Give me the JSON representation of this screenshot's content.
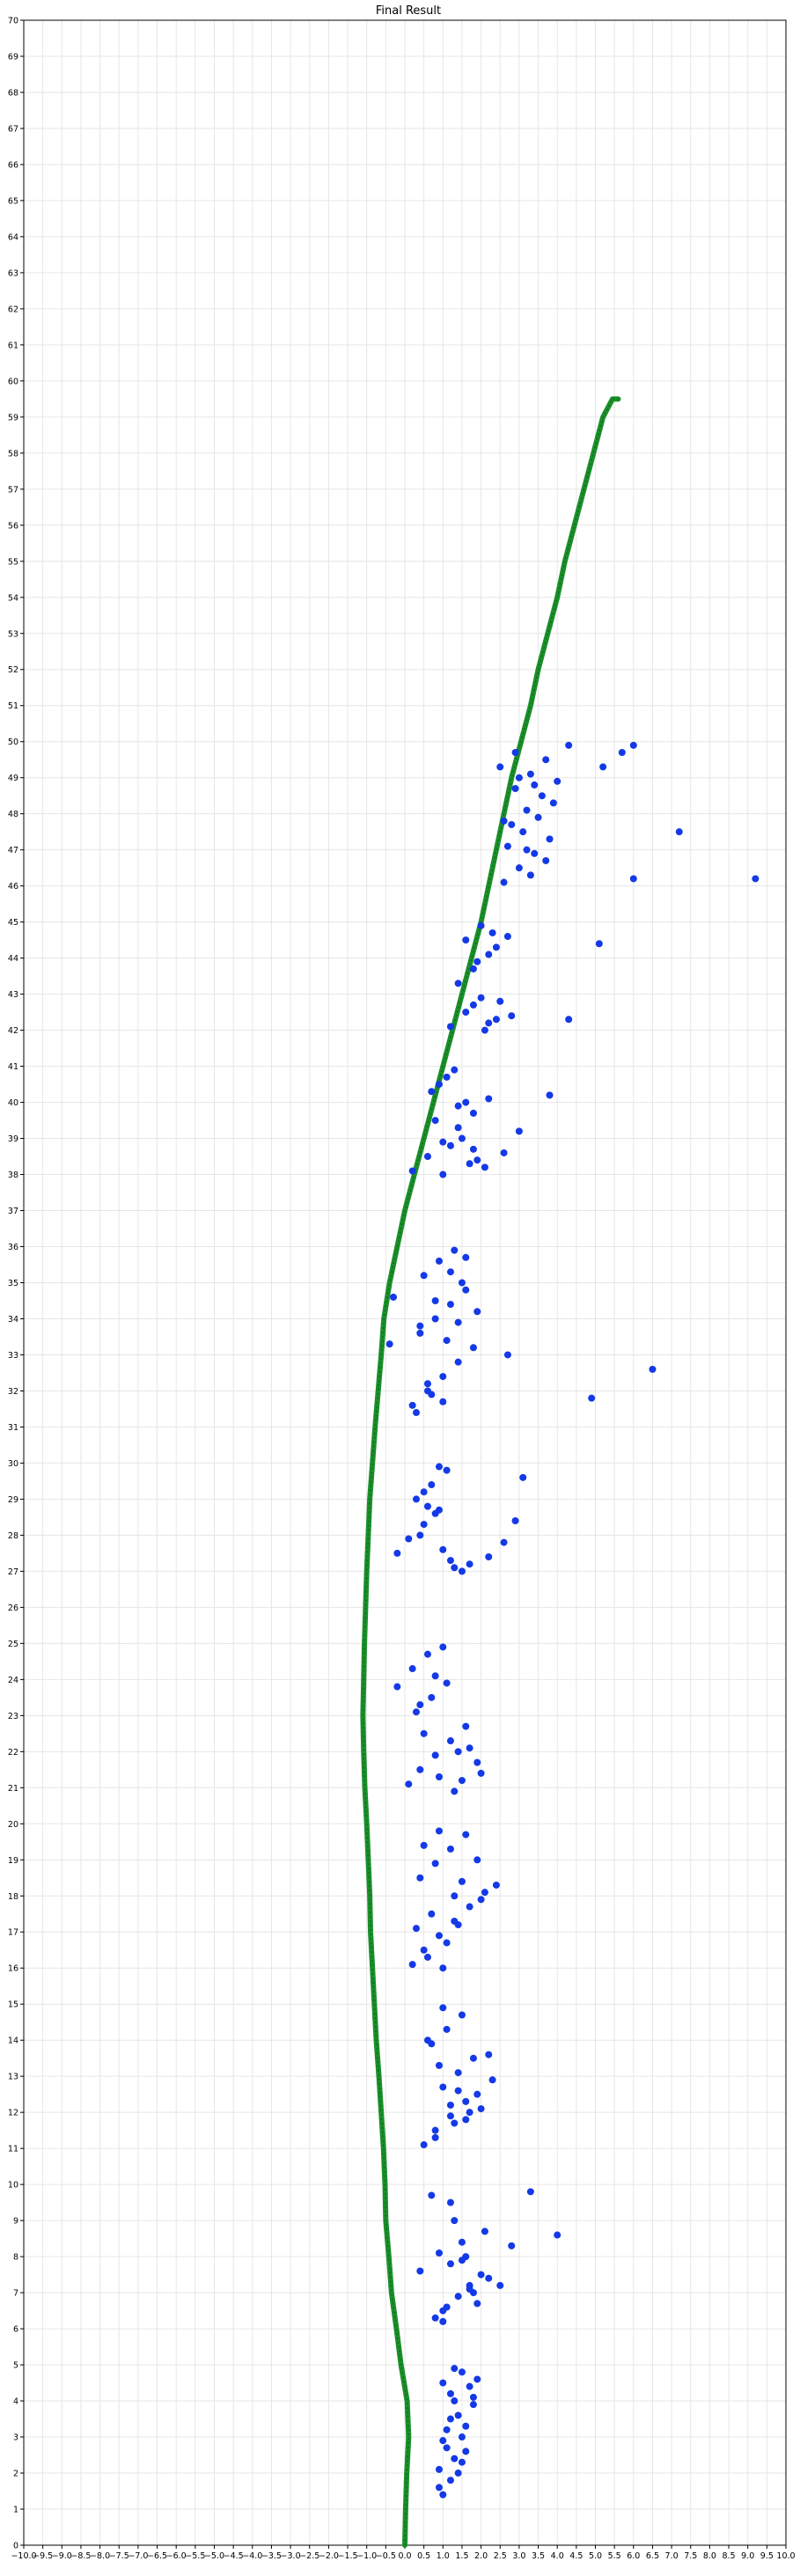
{
  "chart_data": {
    "type": "scatter",
    "title": "Final Result",
    "xlabel": "",
    "ylabel": "",
    "xlim": [
      -10.0,
      10.0
    ],
    "ylim": [
      0,
      70
    ],
    "x_tick_step": 0.5,
    "y_tick_step": 1,
    "grid": true,
    "legend": "none",
    "colors": {
      "path": "#1a8f2a",
      "points": "#1439e6",
      "grid": "#e6e6e6",
      "axes": "#000000"
    },
    "series": [
      {
        "type": "line",
        "color": "#1a8f2a",
        "x": [
          0.0,
          0.02,
          0.05,
          0.1,
          0.06,
          -0.1,
          -0.22,
          -0.35,
          -0.42,
          -0.5,
          -0.52,
          -0.56,
          -0.62,
          -0.68,
          -0.75,
          -0.8,
          -0.85,
          -0.9,
          -0.92,
          -0.96,
          -1.0,
          -1.05,
          -1.08,
          -1.1,
          -1.06,
          -1.0,
          -0.92,
          -0.85,
          -0.78,
          -0.7,
          -0.62,
          -0.55,
          -0.4,
          -0.2,
          0.0,
          0.25,
          0.5,
          0.75,
          1.0,
          1.25,
          1.5,
          1.75,
          2.0,
          2.2,
          2.4,
          2.6,
          2.8,
          3.05,
          3.3,
          3.5,
          3.75,
          4.0,
          4.2,
          4.45,
          4.7,
          4.95,
          5.2,
          5.45,
          5.6
        ],
        "y": [
          0.0,
          1.0,
          2.0,
          3.0,
          4.0,
          5.0,
          6.0,
          7.0,
          8.0,
          9.0,
          10.0,
          11.0,
          12.0,
          13.0,
          14.0,
          15.0,
          16.0,
          17.0,
          18.0,
          19.0,
          20.0,
          21.0,
          22.0,
          23.0,
          25.0,
          27.0,
          29.0,
          30.0,
          31.0,
          32.0,
          33.0,
          34.0,
          35.0,
          36.0,
          37.0,
          38.0,
          39.0,
          40.0,
          41.0,
          42.0,
          43.0,
          44.0,
          45.0,
          46.0,
          47.0,
          48.0,
          49.0,
          50.0,
          51.0,
          52.0,
          53.0,
          54.0,
          55.0,
          56.0,
          57.0,
          58.0,
          59.0,
          59.5,
          59.5
        ]
      },
      {
        "type": "scatter",
        "color": "#1439e6",
        "x": [
          1.0,
          1.2,
          0.9,
          1.3,
          1.1,
          1.5,
          1.6,
          1.4,
          1.8,
          1.2,
          1.0,
          1.5,
          1.7,
          1.3,
          1.9,
          1.1,
          1.6,
          0.9,
          1.4,
          1.2,
          1.8,
          1.0,
          1.5,
          1.3,
          0.8,
          1.1,
          1.4,
          1.7,
          2.0,
          1.2,
          0.9,
          1.5,
          1.8,
          2.2,
          1.0,
          1.6,
          2.5,
          1.3,
          2.8,
          3.3,
          4.0,
          0.4,
          1.9,
          1.2,
          0.7,
          1.5,
          2.1,
          1.0,
          1.7,
          0.5,
          0.8,
          1.2,
          1.6,
          2.0,
          1.0,
          1.4,
          1.8,
          0.7,
          1.1,
          1.5,
          1.9,
          2.3,
          0.9,
          1.3,
          1.7,
          0.6,
          1.0,
          1.4,
          2.2,
          0.8,
          1.2,
          1.6,
          0.2,
          0.5,
          0.9,
          1.3,
          1.7,
          2.1,
          2.4,
          0.4,
          0.8,
          1.2,
          1.6,
          2.0,
          0.3,
          0.7,
          1.1,
          1.5,
          1.9,
          0.5,
          0.9,
          1.3,
          0.6,
          1.0,
          1.4,
          0.1,
          0.4,
          0.8,
          1.2,
          1.6,
          2.0,
          0.3,
          0.7,
          1.1,
          1.5,
          1.9,
          0.2,
          0.6,
          1.0,
          1.4,
          -0.2,
          0.5,
          0.9,
          1.3,
          1.7,
          0.4,
          0.8,
          -0.2,
          0.1,
          0.5,
          0.9,
          1.3,
          1.7,
          2.2,
          2.6,
          2.9,
          3.1,
          0.3,
          0.7,
          1.1,
          1.5,
          0.4,
          0.8,
          1.2,
          0.5,
          0.9,
          0.6,
          1.0,
          -0.3,
          0.2,
          0.6,
          1.0,
          1.4,
          1.8,
          0.4,
          0.8,
          1.2,
          1.6,
          2.7,
          0.5,
          0.9,
          1.3,
          4.9,
          6.5,
          0.3,
          0.7,
          1.1,
          1.5,
          1.9,
          -0.4,
          0.4,
          0.8,
          1.2,
          1.6,
          0.6,
          1.0,
          1.4,
          0.2,
          0.6,
          1.0,
          1.4,
          1.8,
          2.2,
          0.9,
          1.3,
          1.7,
          2.1,
          0.7,
          1.1,
          1.5,
          1.9,
          0.8,
          1.2,
          1.6,
          2.6,
          3.0,
          3.8,
          1.0,
          1.4,
          1.8,
          1.2,
          1.6,
          2.0,
          2.4,
          1.4,
          1.8,
          2.2,
          1.6,
          2.0,
          2.4,
          1.8,
          2.2,
          2.8,
          4.3,
          1.9,
          2.3,
          2.7,
          2.1,
          2.5,
          5.1,
          2.6,
          3.0,
          3.4,
          3.8,
          2.8,
          3.2,
          3.6,
          4.0,
          2.5,
          2.9,
          3.3,
          3.7,
          2.7,
          3.1,
          3.5,
          3.9,
          2.9,
          3.3,
          3.7,
          4.3,
          5.2,
          5.7,
          6.0,
          7.2,
          9.2,
          6.0,
          3.0,
          3.4,
          2.6,
          3.2
        ],
        "y": [
          1.4,
          1.8,
          2.1,
          2.4,
          2.7,
          3.0,
          3.3,
          3.6,
          3.9,
          4.2,
          4.5,
          4.8,
          4.4,
          4.0,
          4.6,
          3.2,
          2.6,
          1.6,
          2.0,
          3.5,
          4.1,
          2.9,
          2.3,
          4.9,
          6.3,
          6.6,
          6.9,
          7.2,
          7.5,
          7.8,
          8.1,
          8.4,
          7.0,
          7.4,
          6.5,
          8.0,
          7.2,
          9.0,
          8.3,
          9.8,
          8.6,
          7.6,
          6.7,
          9.5,
          9.7,
          7.9,
          8.7,
          6.2,
          7.1,
          11.1,
          11.5,
          11.9,
          12.3,
          12.1,
          12.7,
          13.1,
          13.5,
          13.9,
          14.3,
          14.7,
          12.5,
          12.9,
          13.3,
          11.7,
          12.0,
          14.0,
          14.9,
          12.6,
          13.6,
          11.3,
          12.2,
          11.8,
          16.1,
          16.5,
          16.9,
          17.3,
          17.7,
          18.1,
          18.3,
          18.5,
          18.9,
          19.3,
          19.7,
          17.9,
          17.1,
          17.5,
          16.7,
          18.4,
          19.0,
          19.4,
          19.8,
          18.0,
          16.3,
          16.0,
          17.2,
          21.1,
          21.5,
          21.9,
          22.3,
          22.7,
          21.4,
          23.1,
          23.5,
          23.9,
          21.2,
          21.7,
          24.3,
          24.7,
          24.9,
          22.0,
          23.8,
          22.5,
          21.3,
          20.9,
          22.1,
          23.3,
          24.1,
          27.5,
          27.9,
          28.3,
          28.7,
          27.1,
          27.2,
          27.4,
          27.8,
          28.4,
          29.6,
          29.0,
          29.4,
          29.8,
          27.0,
          28.0,
          28.6,
          27.3,
          29.2,
          29.9,
          28.8,
          27.6,
          34.6,
          31.6,
          32.0,
          32.4,
          32.8,
          33.2,
          33.6,
          34.0,
          34.4,
          34.8,
          33.0,
          35.2,
          35.6,
          35.9,
          31.8,
          32.6,
          31.4,
          31.9,
          33.4,
          35.0,
          34.2,
          33.3,
          33.8,
          34.5,
          35.3,
          35.7,
          32.2,
          31.7,
          33.9,
          38.1,
          38.5,
          38.9,
          39.3,
          39.7,
          40.1,
          40.5,
          40.9,
          38.3,
          38.2,
          40.3,
          40.7,
          39.0,
          38.4,
          39.5,
          38.8,
          40.0,
          38.6,
          39.2,
          40.2,
          38.0,
          39.9,
          38.7,
          42.1,
          42.5,
          42.9,
          42.3,
          43.3,
          43.7,
          44.1,
          44.5,
          44.9,
          44.3,
          42.7,
          42.2,
          42.4,
          42.3,
          43.9,
          44.7,
          44.6,
          42.0,
          42.8,
          44.4,
          46.1,
          46.5,
          46.9,
          47.3,
          47.7,
          48.1,
          48.5,
          48.9,
          49.3,
          49.7,
          46.3,
          46.7,
          47.1,
          47.5,
          47.9,
          48.3,
          48.7,
          49.1,
          49.5,
          49.9,
          49.3,
          49.7,
          49.9,
          47.5,
          46.2,
          46.2,
          49.0,
          48.8,
          47.8,
          47.0
        ]
      }
    ]
  }
}
